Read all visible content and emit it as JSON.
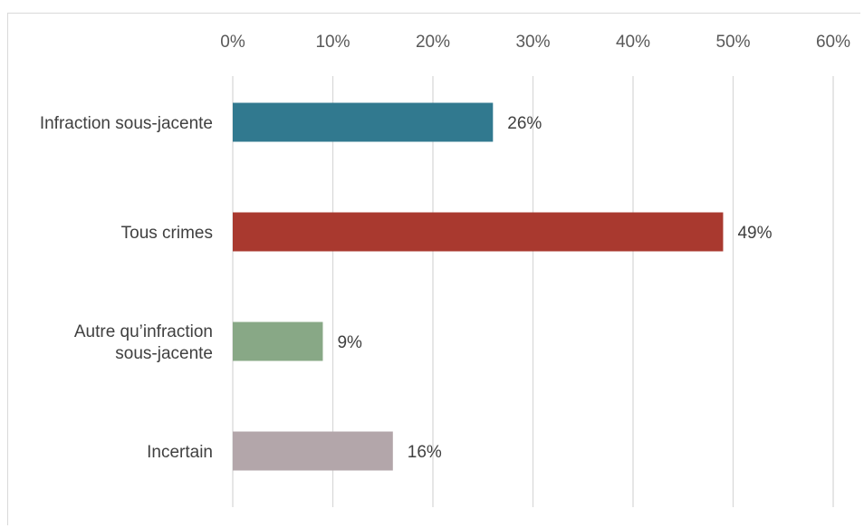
{
  "chart_data": {
    "type": "bar",
    "orientation": "horizontal",
    "xlim": [
      0,
      60
    ],
    "x_ticks": [
      0,
      10,
      20,
      30,
      40,
      50,
      60
    ],
    "x_tick_labels": [
      "0%",
      "10%",
      "20%",
      "30%",
      "40%",
      "50%",
      "60%"
    ],
    "x_axis_position": "top",
    "grid": true,
    "categories": [
      [
        "Infraction sous-jacente"
      ],
      [
        "Tous crimes"
      ],
      [
        "Autre qu’infraction",
        "sous-jacente"
      ],
      [
        "Incertain"
      ]
    ],
    "values": [
      26,
      49,
      9,
      16
    ],
    "data_labels": [
      "26%",
      "49%",
      "9%",
      "16%"
    ],
    "colors": [
      "#31798f",
      "#a9392f",
      "#88a886",
      "#b3a6aa"
    ]
  }
}
